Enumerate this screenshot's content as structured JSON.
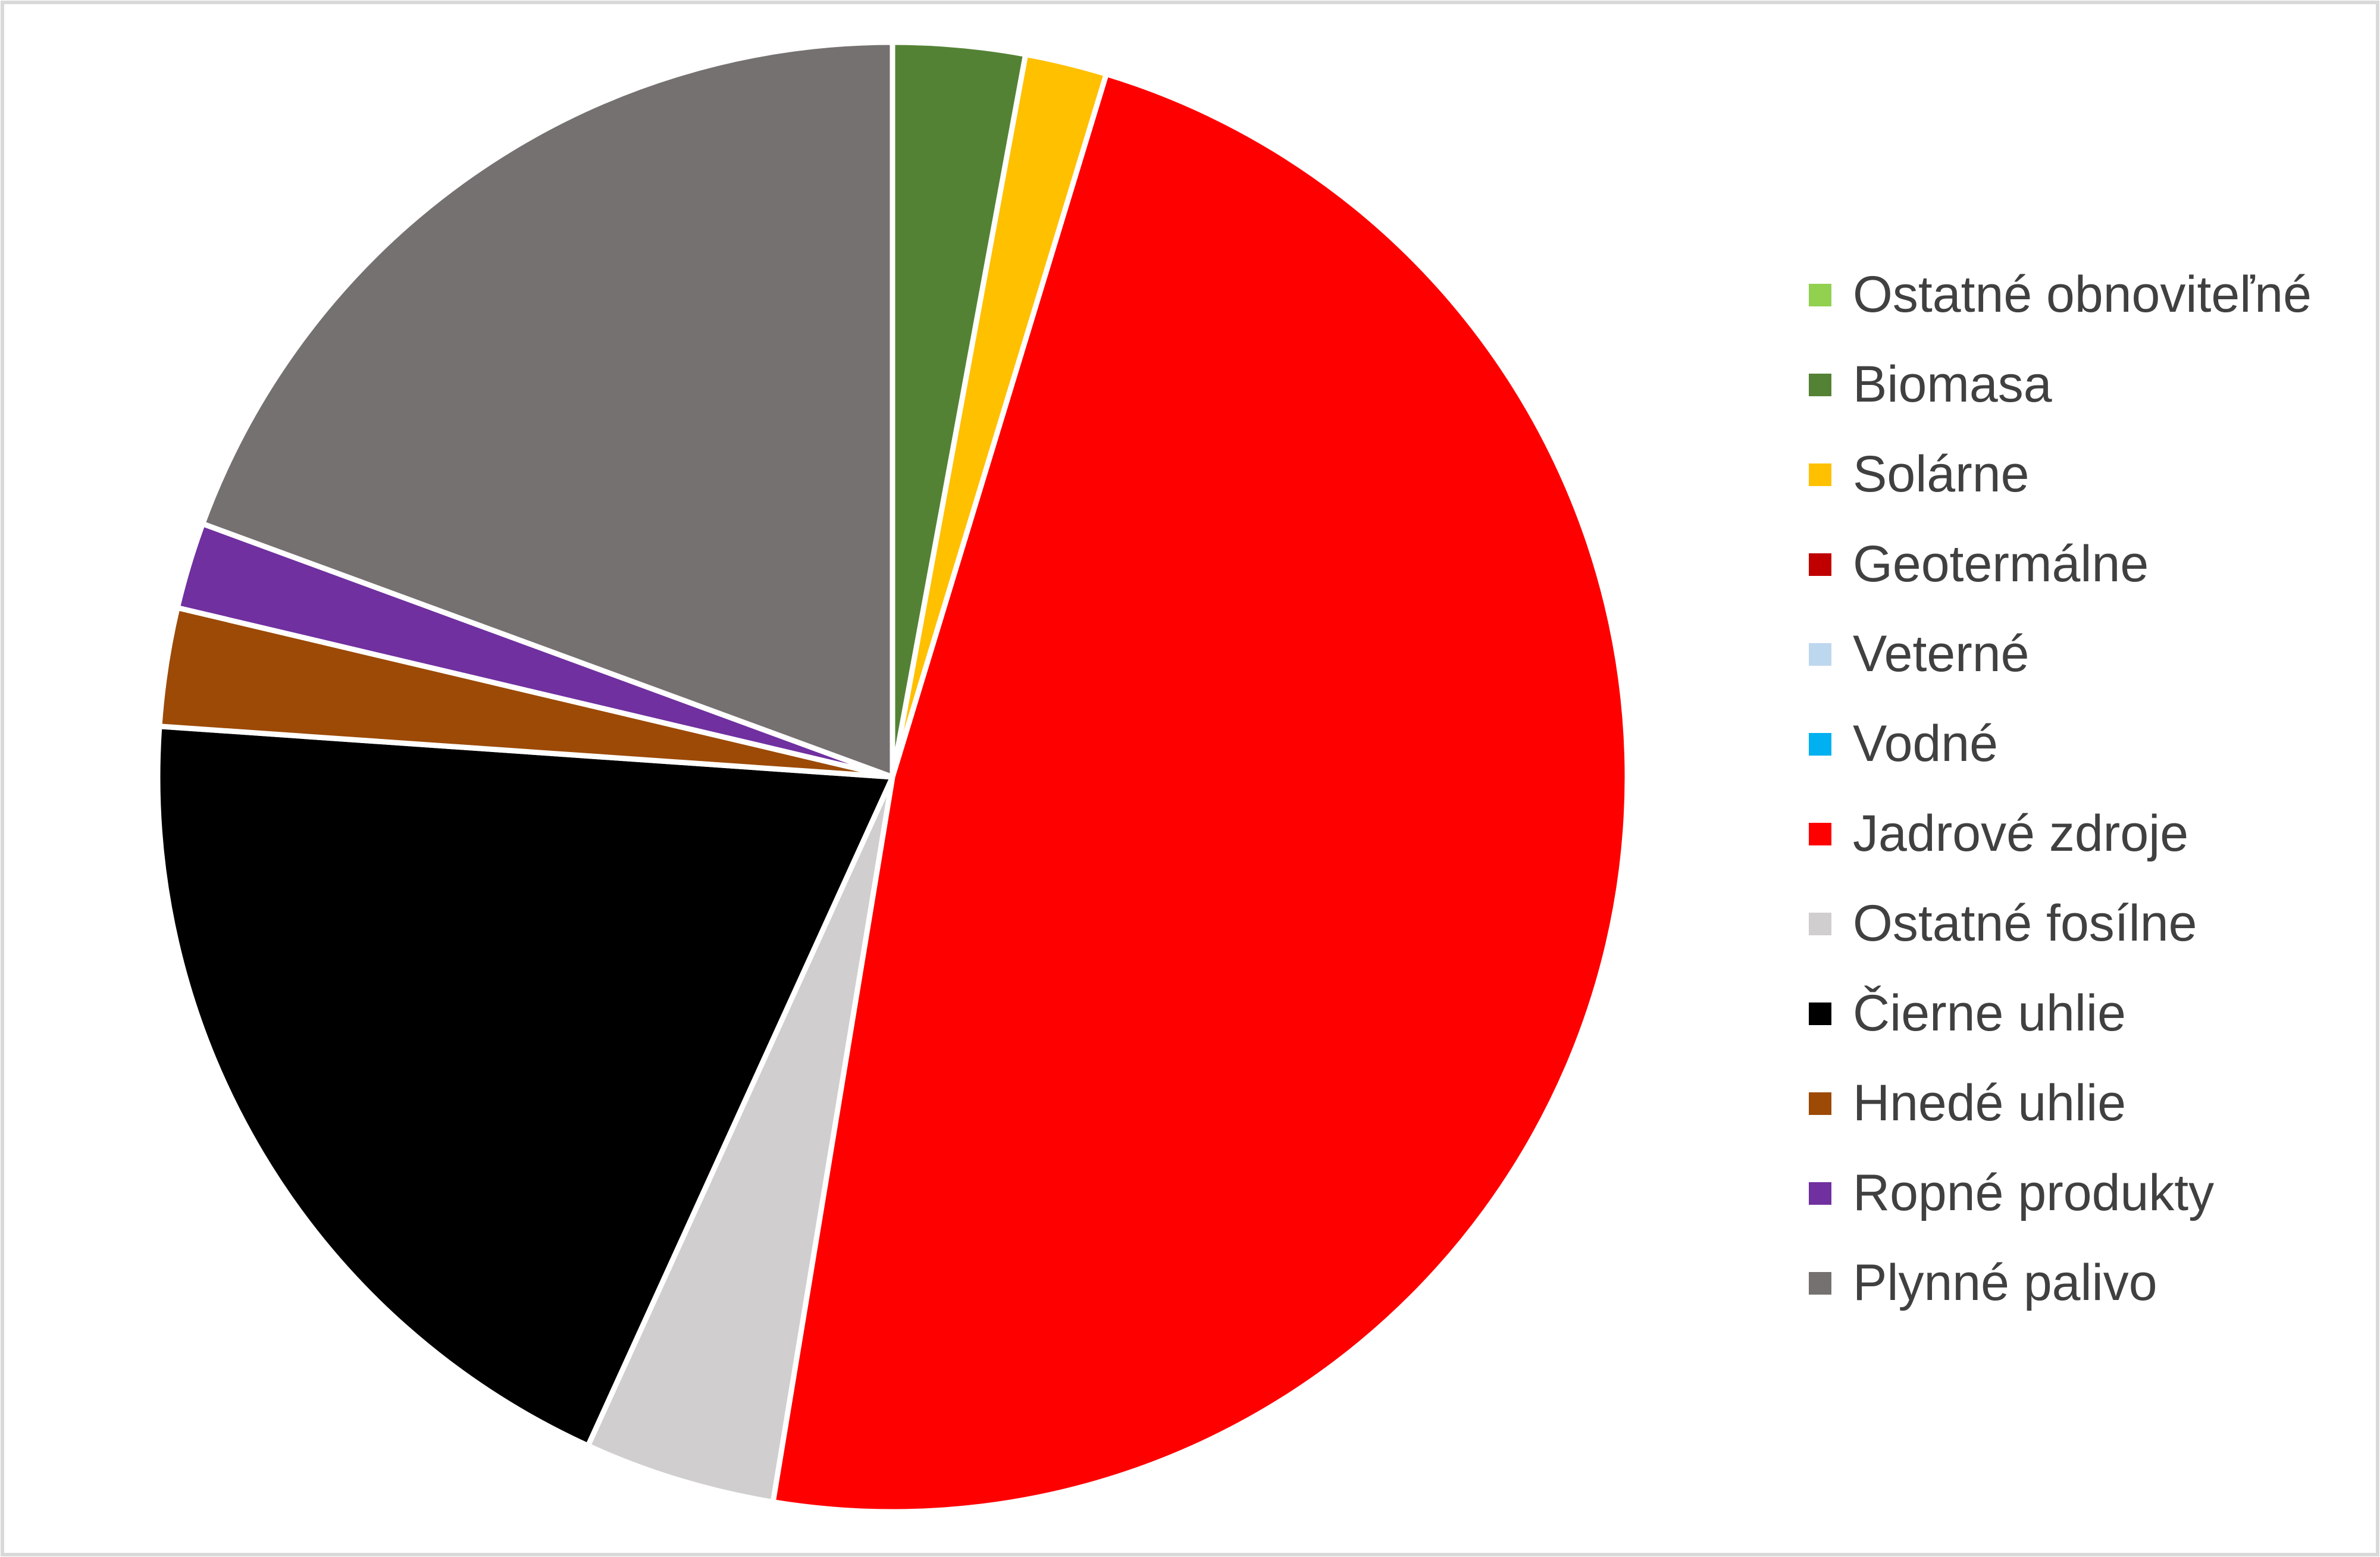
{
  "chart_data": {
    "type": "pie",
    "start_angle": "top",
    "direction": "clockwise",
    "legend_position": "right",
    "categories": [
      "Ostatné obnoviteľné",
      "Biomasa",
      "Solárne",
      "Geotermálne",
      "Veterné",
      "Vodné",
      "Jadrové zdroje",
      "Ostatné fosílne",
      "Čierne uhlie",
      "Hnedé uhlie",
      "Ropné produkty",
      "Plynné palivo"
    ],
    "values": [
      0.0,
      2.9,
      1.8,
      0.0,
      0.0,
      0.0,
      47.9,
      4.2,
      19.3,
      2.6,
      1.9,
      19.4
    ],
    "colors": [
      "#92D050",
      "#548235",
      "#FFC000",
      "#C00000",
      "#BDD7EE",
      "#00B0F0",
      "#FF0000",
      "#D0CECE",
      "#000000",
      "#9C4A06",
      "#7030A0",
      "#767171"
    ]
  }
}
